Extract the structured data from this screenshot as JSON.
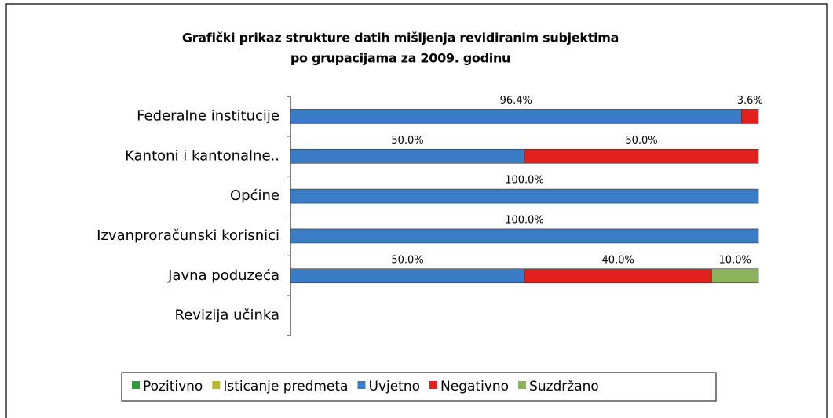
{
  "chart_data": {
    "type": "stacked-bar-horizontal",
    "title": [
      "Grafički prikaz strukture datih mišljenja revidiranim subjektima",
      "po grupacijama  za 2009. godinu"
    ],
    "categories": [
      "Federalne institucije",
      "Kantoni i kantonalne..",
      "Općine",
      "Izvanproračunski korisnici",
      "Javna poduzeća",
      "Revizija učinka"
    ],
    "series": [
      {
        "name": "Pozitivno",
        "color": "#2e9a3c",
        "values": [
          null,
          null,
          null,
          null,
          null,
          null
        ]
      },
      {
        "name": "Isticanje predmeta",
        "color": "#b8b82c",
        "values": [
          null,
          null,
          null,
          null,
          null,
          null
        ]
      },
      {
        "name": "Uvjetno",
        "color": "#3b7cc6",
        "values": [
          96.4,
          50,
          100,
          100,
          50,
          null
        ],
        "value_labels": [
          "96.4%",
          "50.0%",
          "100.0%",
          "100.0%",
          "50.0%",
          null
        ]
      },
      {
        "name": "Negativno",
        "color": "#e2211f",
        "values": [
          3.6,
          50,
          null,
          null,
          40,
          null
        ],
        "value_labels": [
          "3.6%",
          "50.0%",
          null,
          null,
          "40.0%",
          null
        ]
      },
      {
        "name": "Suzdržano",
        "color": "#8cb25c",
        "values": [
          null,
          null,
          null,
          null,
          10,
          null
        ],
        "value_labels": [
          null,
          null,
          null,
          null,
          "10.0%",
          null
        ]
      }
    ],
    "legend": "bottom"
  }
}
